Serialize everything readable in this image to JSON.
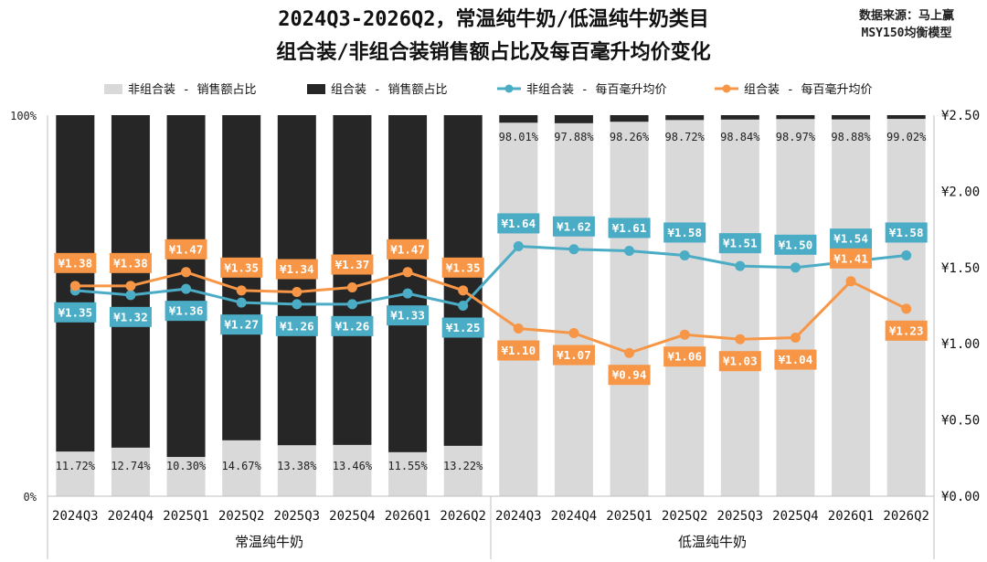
{
  "chart_data": {
    "type": "bar",
    "title": "2024Q3-2026Q2，常温纯牛奶/低温纯牛奶类目",
    "subtitle": "组合装/非组合装销售额占比及每百毫升均价变化",
    "source": [
      "数据来源：马上赢",
      "MSY150均衡模型"
    ],
    "categories": [
      "2024Q3",
      "2024Q4",
      "2025Q1",
      "2025Q2",
      "2025Q3",
      "2025Q4",
      "2026Q1",
      "2026Q2",
      "2024Q3",
      "2024Q4",
      "2025Q1",
      "2025Q2",
      "2025Q3",
      "2025Q4",
      "2026Q1",
      "2026Q2"
    ],
    "groups": [
      {
        "label": "常温纯牛奶",
        "from": 0,
        "to": 7
      },
      {
        "label": "低温纯牛奶",
        "from": 8,
        "to": 15
      }
    ],
    "y_left": {
      "ticks": [
        "0%",
        "100%"
      ],
      "lim": [
        0,
        100
      ]
    },
    "y_right": {
      "ticks": [
        "¥0.00",
        "¥0.50",
        "¥1.00",
        "¥1.50",
        "¥2.00",
        "¥2.50"
      ],
      "lim": [
        0,
        2.5
      ]
    },
    "series": [
      {
        "name": "非组合装 - 销售额占比",
        "kind": "bar",
        "axis": "left",
        "color": "#d9d9d9",
        "values": [
          11.72,
          12.74,
          10.3,
          14.67,
          13.38,
          13.46,
          11.55,
          13.22,
          98.01,
          97.88,
          98.26,
          98.72,
          98.84,
          98.97,
          98.88,
          99.02
        ],
        "labels": [
          "11.72%",
          "12.74%",
          "10.30%",
          "14.67%",
          "13.38%",
          "13.46%",
          "11.55%",
          "13.22%",
          "98.01%",
          "97.88%",
          "98.26%",
          "98.72%",
          "98.84%",
          "98.97%",
          "98.88%",
          "99.02%"
        ]
      },
      {
        "name": "组合装 - 销售额占比",
        "kind": "bar",
        "axis": "left",
        "color": "#262626",
        "values": [
          88.28,
          87.26,
          89.7,
          85.33,
          86.62,
          86.54,
          88.45,
          86.78,
          1.99,
          2.12,
          1.74,
          1.28,
          1.16,
          1.03,
          1.12,
          0.98
        ]
      },
      {
        "name": "非组合装 - 每百毫升均价",
        "kind": "line",
        "axis": "right",
        "color": "#4bacc6",
        "values": [
          1.35,
          1.32,
          1.36,
          1.27,
          1.26,
          1.26,
          1.33,
          1.25,
          1.64,
          1.62,
          1.61,
          1.58,
          1.51,
          1.5,
          1.54,
          1.58
        ],
        "labels": [
          "¥1.35",
          "¥1.32",
          "¥1.36",
          "¥1.27",
          "¥1.26",
          "¥1.26",
          "¥1.33",
          "¥1.25",
          "¥1.64",
          "¥1.62",
          "¥1.61",
          "¥1.58",
          "¥1.51",
          "¥1.50",
          "¥1.54",
          "¥1.58"
        ]
      },
      {
        "name": "组合装 - 每百毫升均价",
        "kind": "line",
        "axis": "right",
        "color": "#f79646",
        "values": [
          1.38,
          1.38,
          1.47,
          1.35,
          1.34,
          1.37,
          1.47,
          1.35,
          1.1,
          1.07,
          0.94,
          1.06,
          1.03,
          1.04,
          1.41,
          1.23
        ],
        "labels": [
          "¥1.38",
          "¥1.38",
          "¥1.47",
          "¥1.35",
          "¥1.34",
          "¥1.37",
          "¥1.47",
          "¥1.35",
          "¥1.10",
          "¥1.07",
          "¥0.94",
          "¥1.06",
          "¥1.03",
          "¥1.04",
          "¥1.41",
          "¥1.23"
        ]
      }
    ],
    "legend_position": "top",
    "grid": false
  }
}
